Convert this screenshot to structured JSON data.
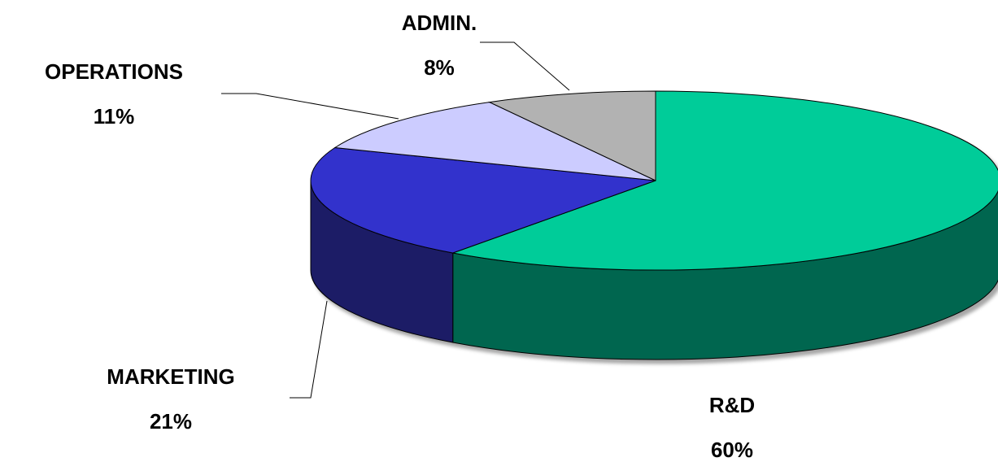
{
  "chart_data": {
    "type": "pie3d",
    "categories": [
      "R&D",
      "MARKETING",
      "OPERATIONS",
      "ADMIN."
    ],
    "values": [
      60,
      21,
      11,
      8
    ],
    "value_labels": [
      "60%",
      "21%",
      "11%",
      "8%"
    ],
    "colors": [
      "#00cc99",
      "#3333cc",
      "#ccccff",
      "#b2b2b2"
    ],
    "side_colors": [
      "#006650",
      "#1a1a66",
      "#666680",
      "#595959"
    ]
  }
}
